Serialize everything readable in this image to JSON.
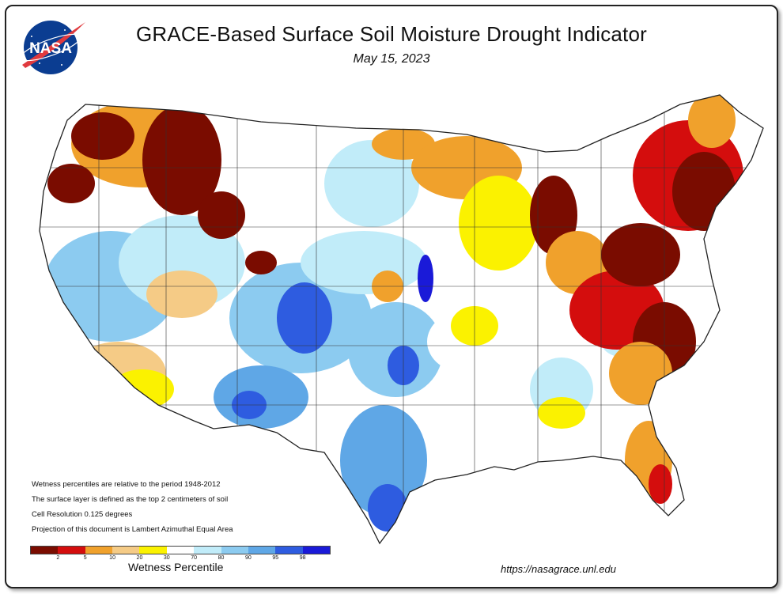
{
  "header": {
    "title": "GRACE-Based Surface Soil  Moisture Drought Indicator",
    "date": "May 15, 2023",
    "logo_text": "NASA"
  },
  "notes": [
    "Wetness percentiles are relative to the period 1948-2012",
    "The surface layer is defined as the top 2 centimeters of soil",
    "Cell Resolution 0.125 degrees",
    "Projection of this document is Lambert Azimuthal Equal Area"
  ],
  "legend": {
    "title": "Wetness Percentile",
    "colors": [
      "#7a0c00",
      "#d40d0d",
      "#f0a12c",
      "#f5cb86",
      "#fbf200",
      "#ffffff",
      "#c1ecf9",
      "#8ccbf0",
      "#5fa7e6",
      "#2e5ce0",
      "#1a1ad8"
    ],
    "ticks": [
      "2",
      "5",
      "10",
      "20",
      "30",
      "70",
      "80",
      "90",
      "95",
      "98"
    ]
  },
  "footer": {
    "url": "https://nasagrace.unl.edu"
  }
}
